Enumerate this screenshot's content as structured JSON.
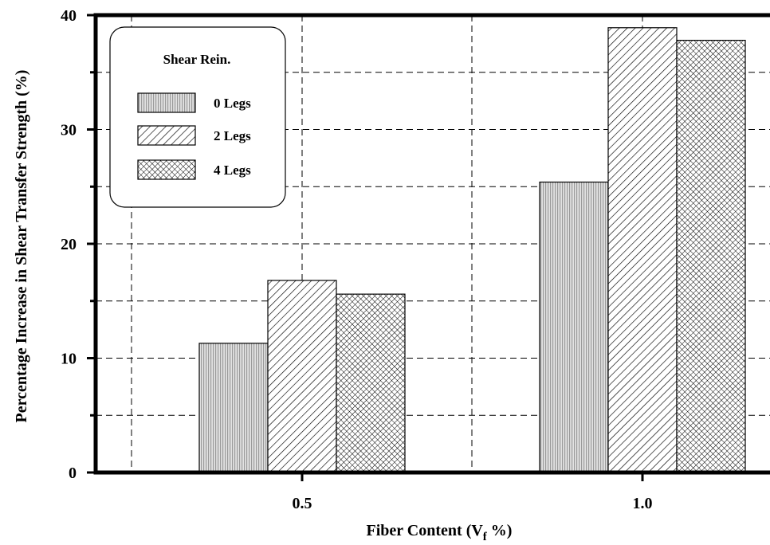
{
  "chart_data": {
    "type": "bar",
    "categories": [
      "0.5",
      "1.0"
    ],
    "series": [
      {
        "name": "0 Legs",
        "values": [
          11.3,
          25.4
        ]
      },
      {
        "name": "2 Legs",
        "values": [
          16.8,
          38.9
        ]
      },
      {
        "name": "4 Legs",
        "values": [
          15.6,
          37.8
        ]
      }
    ],
    "title": "",
    "xlabel": "Fiber Content (V",
    "xlabel_subscript": "f",
    "xlabel_suffix": " %)",
    "ylabel": "Percentage Increase in Shear Transfer Strength (%)",
    "ylim": [
      0,
      40
    ],
    "yticks": [
      "0",
      "10",
      "20",
      "30",
      "40"
    ],
    "grid": true,
    "legend": {
      "title": "Shear Rein.",
      "placement": "top-left"
    },
    "series_patterns": [
      "dotted-fill",
      "diagonal-hatch",
      "cross-hatch"
    ]
  }
}
